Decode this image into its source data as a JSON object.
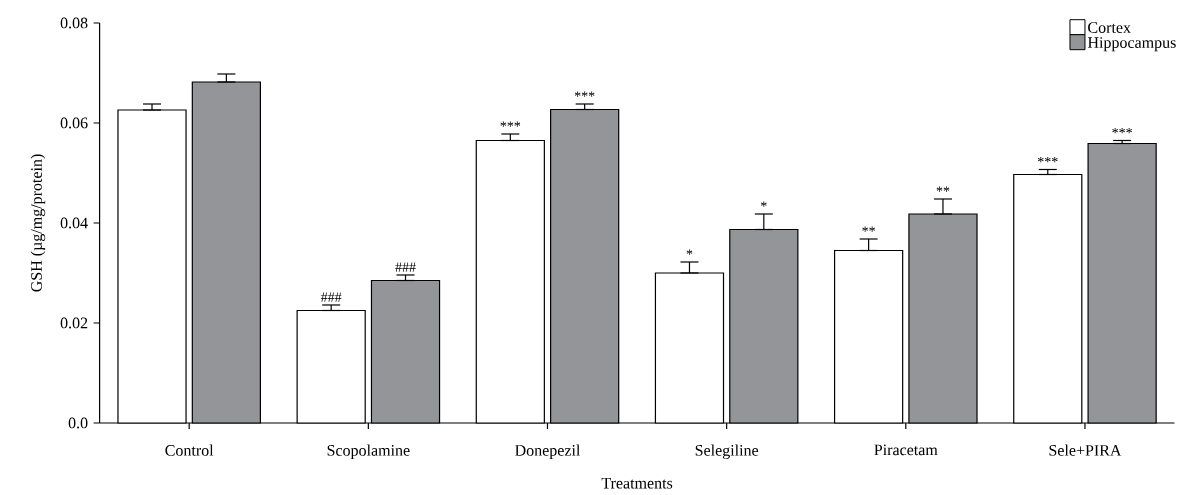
{
  "chart_data": {
    "type": "bar",
    "xlabel": "Treatments",
    "ylabel": "GSH (µg/mg/protein)",
    "categories": [
      "Control",
      "Scopolamine",
      "Donepezil",
      "Selegiline",
      "Piracetam",
      "Sele+PIRA"
    ],
    "series": [
      {
        "name": "Cortex",
        "color": "#ffffff",
        "values": [
          0.0626,
          0.0225,
          0.0565,
          0.03,
          0.0345,
          0.0497
        ],
        "errors": [
          [
            0.0626,
            0.0638
          ],
          [
            0.0225,
            0.0236
          ],
          [
            0.0565,
            0.0578
          ],
          [
            0.03,
            0.0322
          ],
          [
            0.0345,
            0.0368
          ],
          [
            0.0497,
            0.0507
          ]
        ],
        "value_labels": [
          null,
          "###",
          "***",
          "*",
          "**",
          "***"
        ]
      },
      {
        "name": "Hippocampus",
        "color": "#939598",
        "values": [
          0.0682,
          0.0285,
          0.0627,
          0.0387,
          0.0418,
          0.0559
        ],
        "errors": [
          [
            0.0682,
            0.0698
          ],
          [
            0.0285,
            0.0296
          ],
          [
            0.0627,
            0.0638
          ],
          [
            0.0387,
            0.0418
          ],
          [
            0.0418,
            0.0448
          ],
          [
            0.0559,
            0.0565
          ]
        ],
        "value_labels": [
          null,
          "###",
          "***",
          "*",
          "**",
          "***"
        ]
      }
    ],
    "ylim": [
      0,
      0.08
    ],
    "yticks": [
      {
        "value": 0,
        "label": "0.0"
      },
      0.02,
      0.04,
      0.06,
      0.08
    ],
    "legend": "top right"
  }
}
